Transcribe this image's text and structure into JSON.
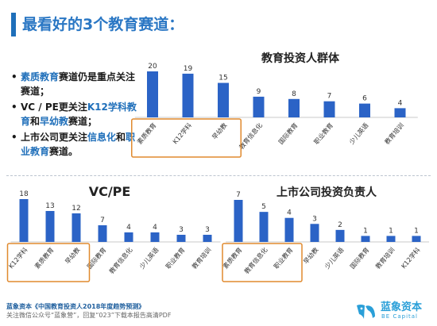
{
  "page": {
    "title": "最看好的3个教育赛道："
  },
  "bullets": [
    {
      "segments": [
        {
          "t": "素质教育",
          "hl": true
        },
        {
          "t": "赛道仍是重点关注赛道；",
          "hl": false
        }
      ]
    },
    {
      "segments": [
        {
          "t": "VC / PE更关注",
          "hl": false
        },
        {
          "t": "K12学科教育",
          "hl": true
        },
        {
          "t": "和",
          "hl": false
        },
        {
          "t": "早幼教",
          "hl": true
        },
        {
          "t": "赛道；",
          "hl": false
        }
      ]
    },
    {
      "segments": [
        {
          "t": "上市公司更关注",
          "hl": false
        },
        {
          "t": "信息化",
          "hl": true
        },
        {
          "t": "和",
          "hl": false
        },
        {
          "t": "职业教育",
          "hl": true
        },
        {
          "t": "赛道。",
          "hl": false
        }
      ]
    }
  ],
  "footer": {
    "line1": "蓝象资本《中国教育投资人2018年度趋势预测》",
    "line2": "关注微信公众号“蓝象营”，回复“023”下载本报告高清PDF"
  },
  "logo": {
    "cn": "蓝象资本",
    "en": "BE Capital"
  },
  "colors": {
    "bar": "#2b63c6",
    "highlight_box": "#e08a2e",
    "title": "#2a77c4",
    "accent": "#1f6fba"
  },
  "chart_data": [
    {
      "type": "bar",
      "title": "教育投资人群体",
      "categories": [
        "素质教育",
        "K12学科",
        "早幼教",
        "教育信息化",
        "国际教育",
        "职业教育",
        "少儿英语",
        "教育培训"
      ],
      "values": [
        20,
        19,
        15,
        9,
        8,
        7,
        6,
        4
      ],
      "highlighted": [
        "素质教育",
        "K12学科",
        "早幼教"
      ],
      "ylim": [
        0,
        20
      ]
    },
    {
      "type": "bar",
      "title": "VC/PE",
      "categories": [
        "K12学科",
        "素质教育",
        "早幼教",
        "国际教育",
        "教育信息化",
        "少儿英语",
        "职业教育",
        "教育培训"
      ],
      "values": [
        18,
        13,
        12,
        7,
        4,
        4,
        3,
        3
      ],
      "highlighted": [
        "K12学科",
        "素质教育",
        "早幼教"
      ],
      "ylim": [
        0,
        18
      ]
    },
    {
      "type": "bar",
      "title": "上市公司投资负责人",
      "categories": [
        "素质教育",
        "教育信息化",
        "职业教育",
        "早幼教",
        "少儿英语",
        "国际教育",
        "教育培训",
        "K12学科"
      ],
      "values": [
        7,
        5,
        4,
        3,
        2,
        1,
        1,
        1
      ],
      "highlighted": [
        "素质教育",
        "教育信息化",
        "职业教育"
      ],
      "ylim": [
        0,
        7
      ]
    }
  ]
}
